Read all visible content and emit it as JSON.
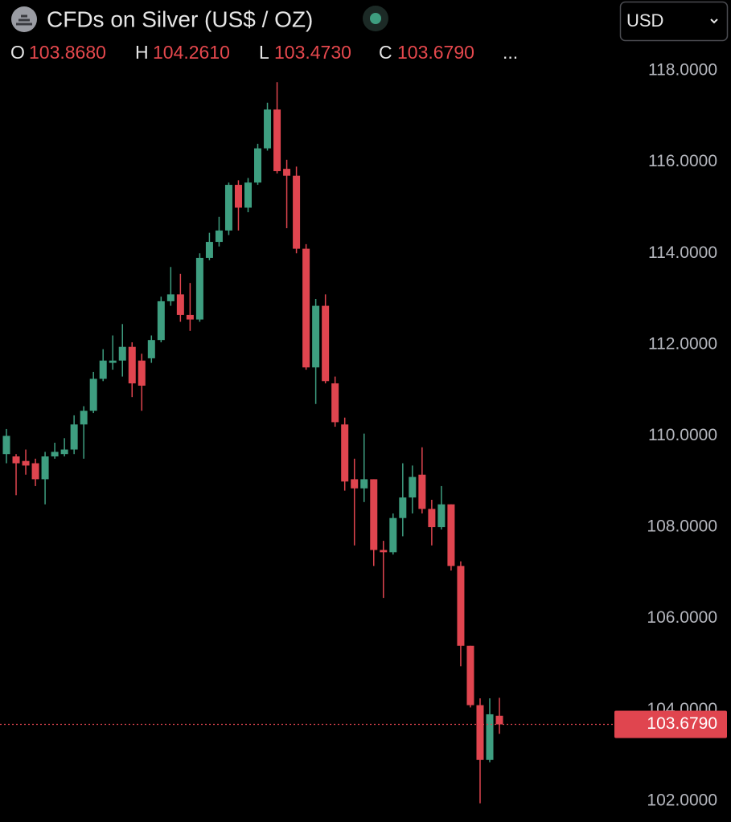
{
  "chart_data": {
    "type": "candlestick",
    "title": "CFDs on Silver (US$ / OZ)",
    "currency": "USD",
    "header_labels": [
      {
        "key": "O",
        "label": "103.8680"
      },
      {
        "key": "H",
        "label": "104.2610"
      },
      {
        "key": "L",
        "label": "103.4730"
      },
      {
        "key": "C",
        "label": "103.6790"
      }
    ],
    "more": "...",
    "up_color": "#3e9e80",
    "down_color": "#e0454f",
    "last_price": {
      "value": 103.679,
      "label": "103.6790"
    },
    "ylim": [
      101.54,
      119.55
    ],
    "yticks": [
      {
        "value": 102,
        "label": "102.0000"
      },
      {
        "value": 104,
        "label": "104.0000"
      },
      {
        "value": 106,
        "label": "106.0000"
      },
      {
        "value": 108,
        "label": "108.0000"
      },
      {
        "value": 110,
        "label": "110.0000"
      },
      {
        "value": 112,
        "label": "112.0000"
      },
      {
        "value": 114,
        "label": "114.0000"
      },
      {
        "value": 116,
        "label": "116.0000"
      },
      {
        "value": 118,
        "label": "118.0000"
      }
    ],
    "open": [
      109.6,
      109.55,
      109.45,
      109.4,
      109.05,
      109.55,
      109.6,
      109.7,
      110.25,
      110.55,
      111.25,
      111.6,
      111.65,
      111.95,
      111.65,
      111.7,
      112.1,
      112.95,
      113.1,
      112.65,
      112.55,
      113.9,
      114.25,
      114.5,
      115.5,
      115.0,
      115.55,
      116.3,
      117.15,
      115.85,
      115.7,
      114.1,
      111.5,
      112.85,
      111.15,
      110.25,
      109.05,
      108.85,
      109.05,
      107.5,
      107.45,
      108.2,
      108.65,
      109.15,
      108.4,
      108.0,
      108.5,
      107.15,
      105.4,
      104.1,
      102.9,
      103.868
    ],
    "high": [
      110.15,
      109.6,
      109.7,
      109.5,
      109.65,
      109.85,
      109.95,
      110.45,
      110.65,
      111.4,
      111.9,
      112.2,
      112.45,
      112.05,
      111.8,
      112.2,
      113.05,
      113.7,
      113.55,
      113.35,
      114.0,
      114.45,
      114.8,
      115.55,
      115.6,
      115.65,
      116.4,
      117.3,
      117.75,
      116.05,
      115.9,
      114.2,
      113.0,
      113.1,
      111.3,
      110.4,
      109.5,
      110.05,
      109.05,
      107.7,
      108.3,
      109.4,
      109.35,
      109.75,
      108.6,
      108.9,
      108.5,
      107.25,
      105.4,
      104.25,
      104.25,
      104.261
    ],
    "low": [
      109.4,
      108.7,
      109.15,
      108.9,
      108.5,
      109.5,
      109.55,
      109.6,
      109.5,
      110.5,
      111.2,
      111.45,
      111.3,
      110.85,
      110.55,
      111.6,
      112.05,
      112.85,
      112.5,
      112.3,
      112.5,
      113.85,
      114.15,
      114.4,
      114.5,
      114.9,
      115.5,
      116.25,
      115.75,
      114.55,
      114.0,
      111.45,
      110.7,
      111.15,
      110.2,
      108.8,
      107.6,
      108.55,
      107.15,
      106.45,
      107.4,
      107.8,
      108.3,
      108.3,
      107.6,
      107.95,
      107.05,
      104.95,
      104.05,
      101.95,
      102.85,
      103.473
    ],
    "close": [
      110.0,
      109.4,
      109.35,
      109.05,
      109.55,
      109.65,
      109.7,
      110.25,
      110.55,
      111.25,
      111.65,
      111.65,
      111.95,
      111.15,
      111.1,
      112.1,
      112.95,
      113.1,
      112.65,
      112.55,
      113.9,
      114.25,
      114.5,
      115.5,
      115.0,
      115.55,
      116.3,
      117.15,
      115.8,
      115.7,
      114.1,
      111.5,
      112.85,
      111.2,
      110.3,
      109.0,
      108.85,
      109.05,
      107.5,
      107.45,
      108.2,
      108.65,
      109.1,
      108.4,
      108.0,
      108.5,
      107.15,
      105.4,
      104.1,
      102.9,
      103.9,
      103.679
    ]
  }
}
